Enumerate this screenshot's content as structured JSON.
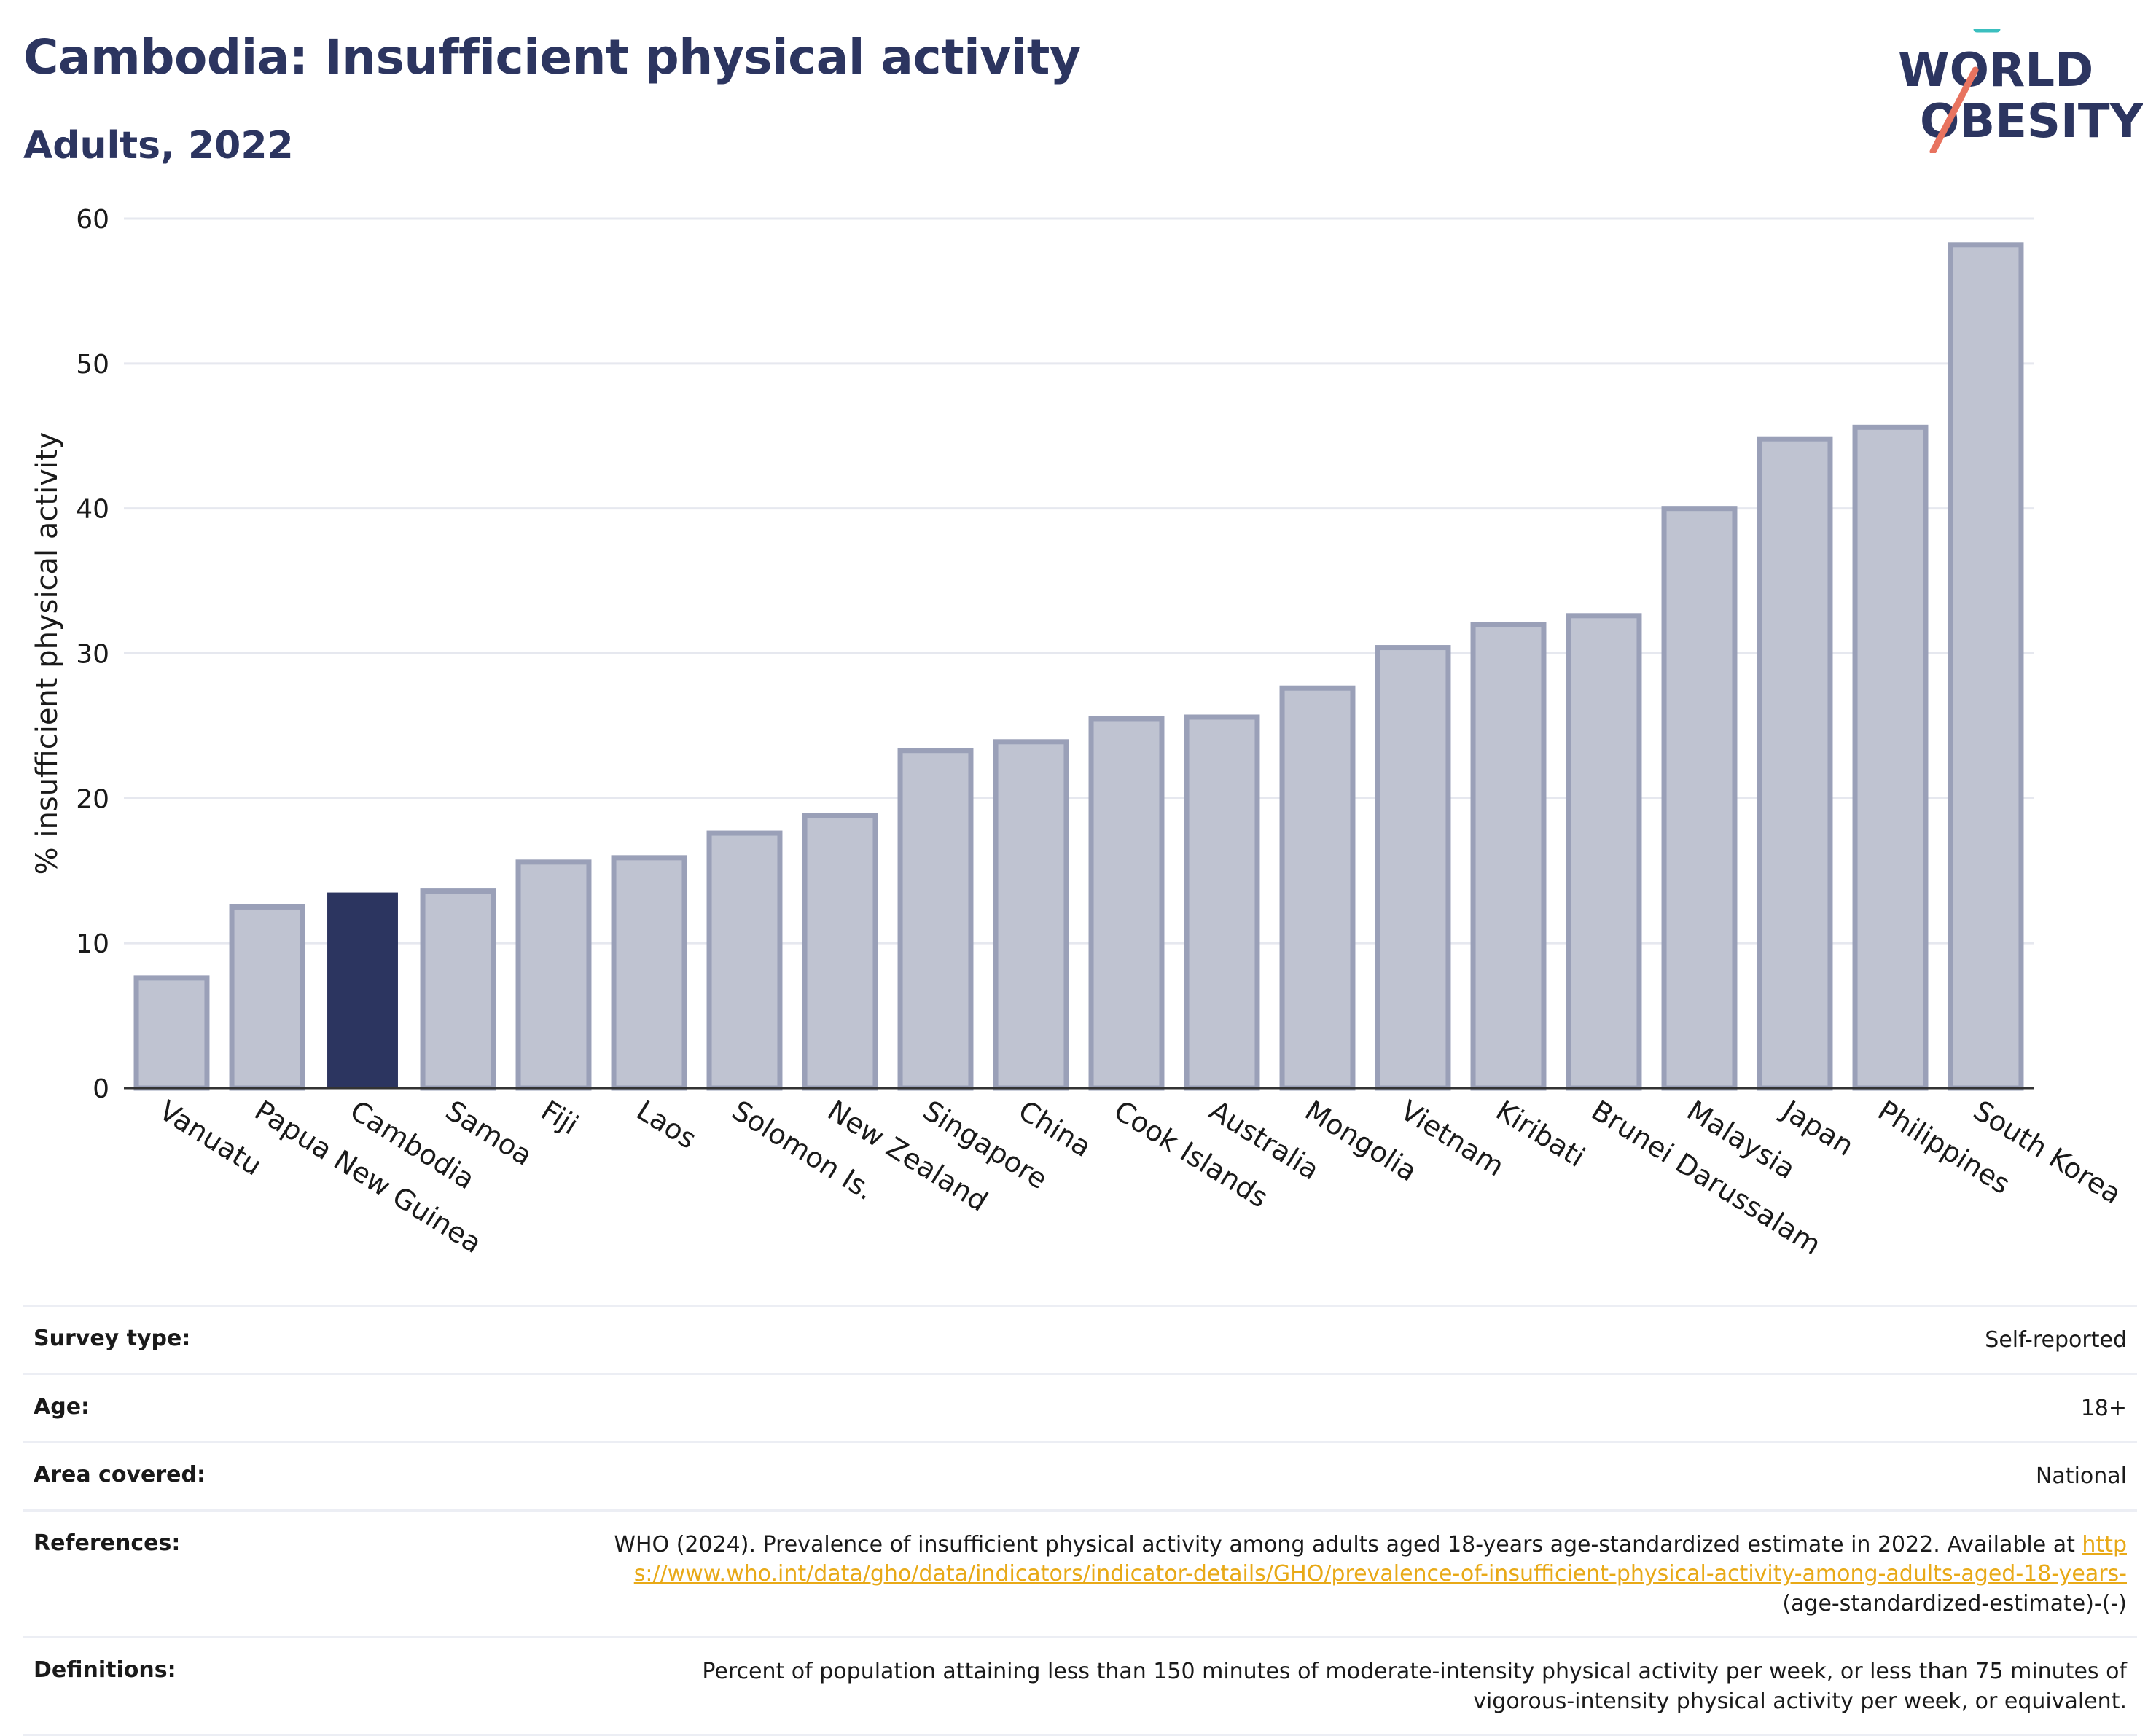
{
  "title": "Cambodia: Insufficient physical activity",
  "subtitle": "Adults, 2022",
  "logo": {
    "line1": "WORLD",
    "line2": "OBESITY",
    "accent_teal": "#3bbfbf",
    "accent_coral": "#e8735f"
  },
  "colors": {
    "highlight": "#2c3560",
    "bar_fill": "#bfc3d1",
    "bar_stroke": "#9aa0b8",
    "grid": "#e6e8ef",
    "text": "#1a1a1a"
  },
  "chart_data": {
    "type": "bar",
    "title": "Cambodia: Insufficient physical activity",
    "subtitle": "Adults, 2022",
    "xlabel": "",
    "ylabel": "% insufficient physical activity",
    "ylim": [
      0,
      60
    ],
    "yticks": [
      0,
      10,
      20,
      30,
      40,
      50,
      60
    ],
    "grid": true,
    "highlight": "Cambodia",
    "categories": [
      "Vanuatu",
      "Papua New Guinea",
      "Cambodia",
      "Samoa",
      "Fiji",
      "Laos",
      "Solomon Is.",
      "New Zealand",
      "Singapore",
      "China",
      "Cook Islands",
      "Australia",
      "Mongolia",
      "Vietnam",
      "Kiribati",
      "Brunei Darussalam",
      "Malaysia",
      "Japan",
      "Philippines",
      "South Korea"
    ],
    "values": [
      7.6,
      12.5,
      13.5,
      13.6,
      15.6,
      15.9,
      17.6,
      18.8,
      23.3,
      23.9,
      25.5,
      25.6,
      27.6,
      30.4,
      32.0,
      32.6,
      40.0,
      44.8,
      45.6,
      58.2
    ]
  },
  "info": {
    "survey_type_label": "Survey type:",
    "survey_type_value": "Self-reported",
    "age_label": "Age:",
    "age_value": "18+",
    "area_label": "Area covered:",
    "area_value": "National",
    "references_label": "References:",
    "references_text": "WHO (2024). Prevalence of insufficient physical activity among adults aged 18-years age-standardized estimate in 2022. Available at",
    "references_link": "https://www.who.int/data/gho/data/indicators/indicator-details/GHO/prevalence-of-insufficient-physical-activity-among-adults-aged-18-years-",
    "references_suffix": "(age-standardized-estimate)-(-)",
    "definitions_label": "Definitions:",
    "definitions_value": "Percent of population attaining less than 150 minutes of moderate-intensity physical activity per week, or less than 75 minutes of vigorous-intensity physical activity per week, or equivalent."
  }
}
